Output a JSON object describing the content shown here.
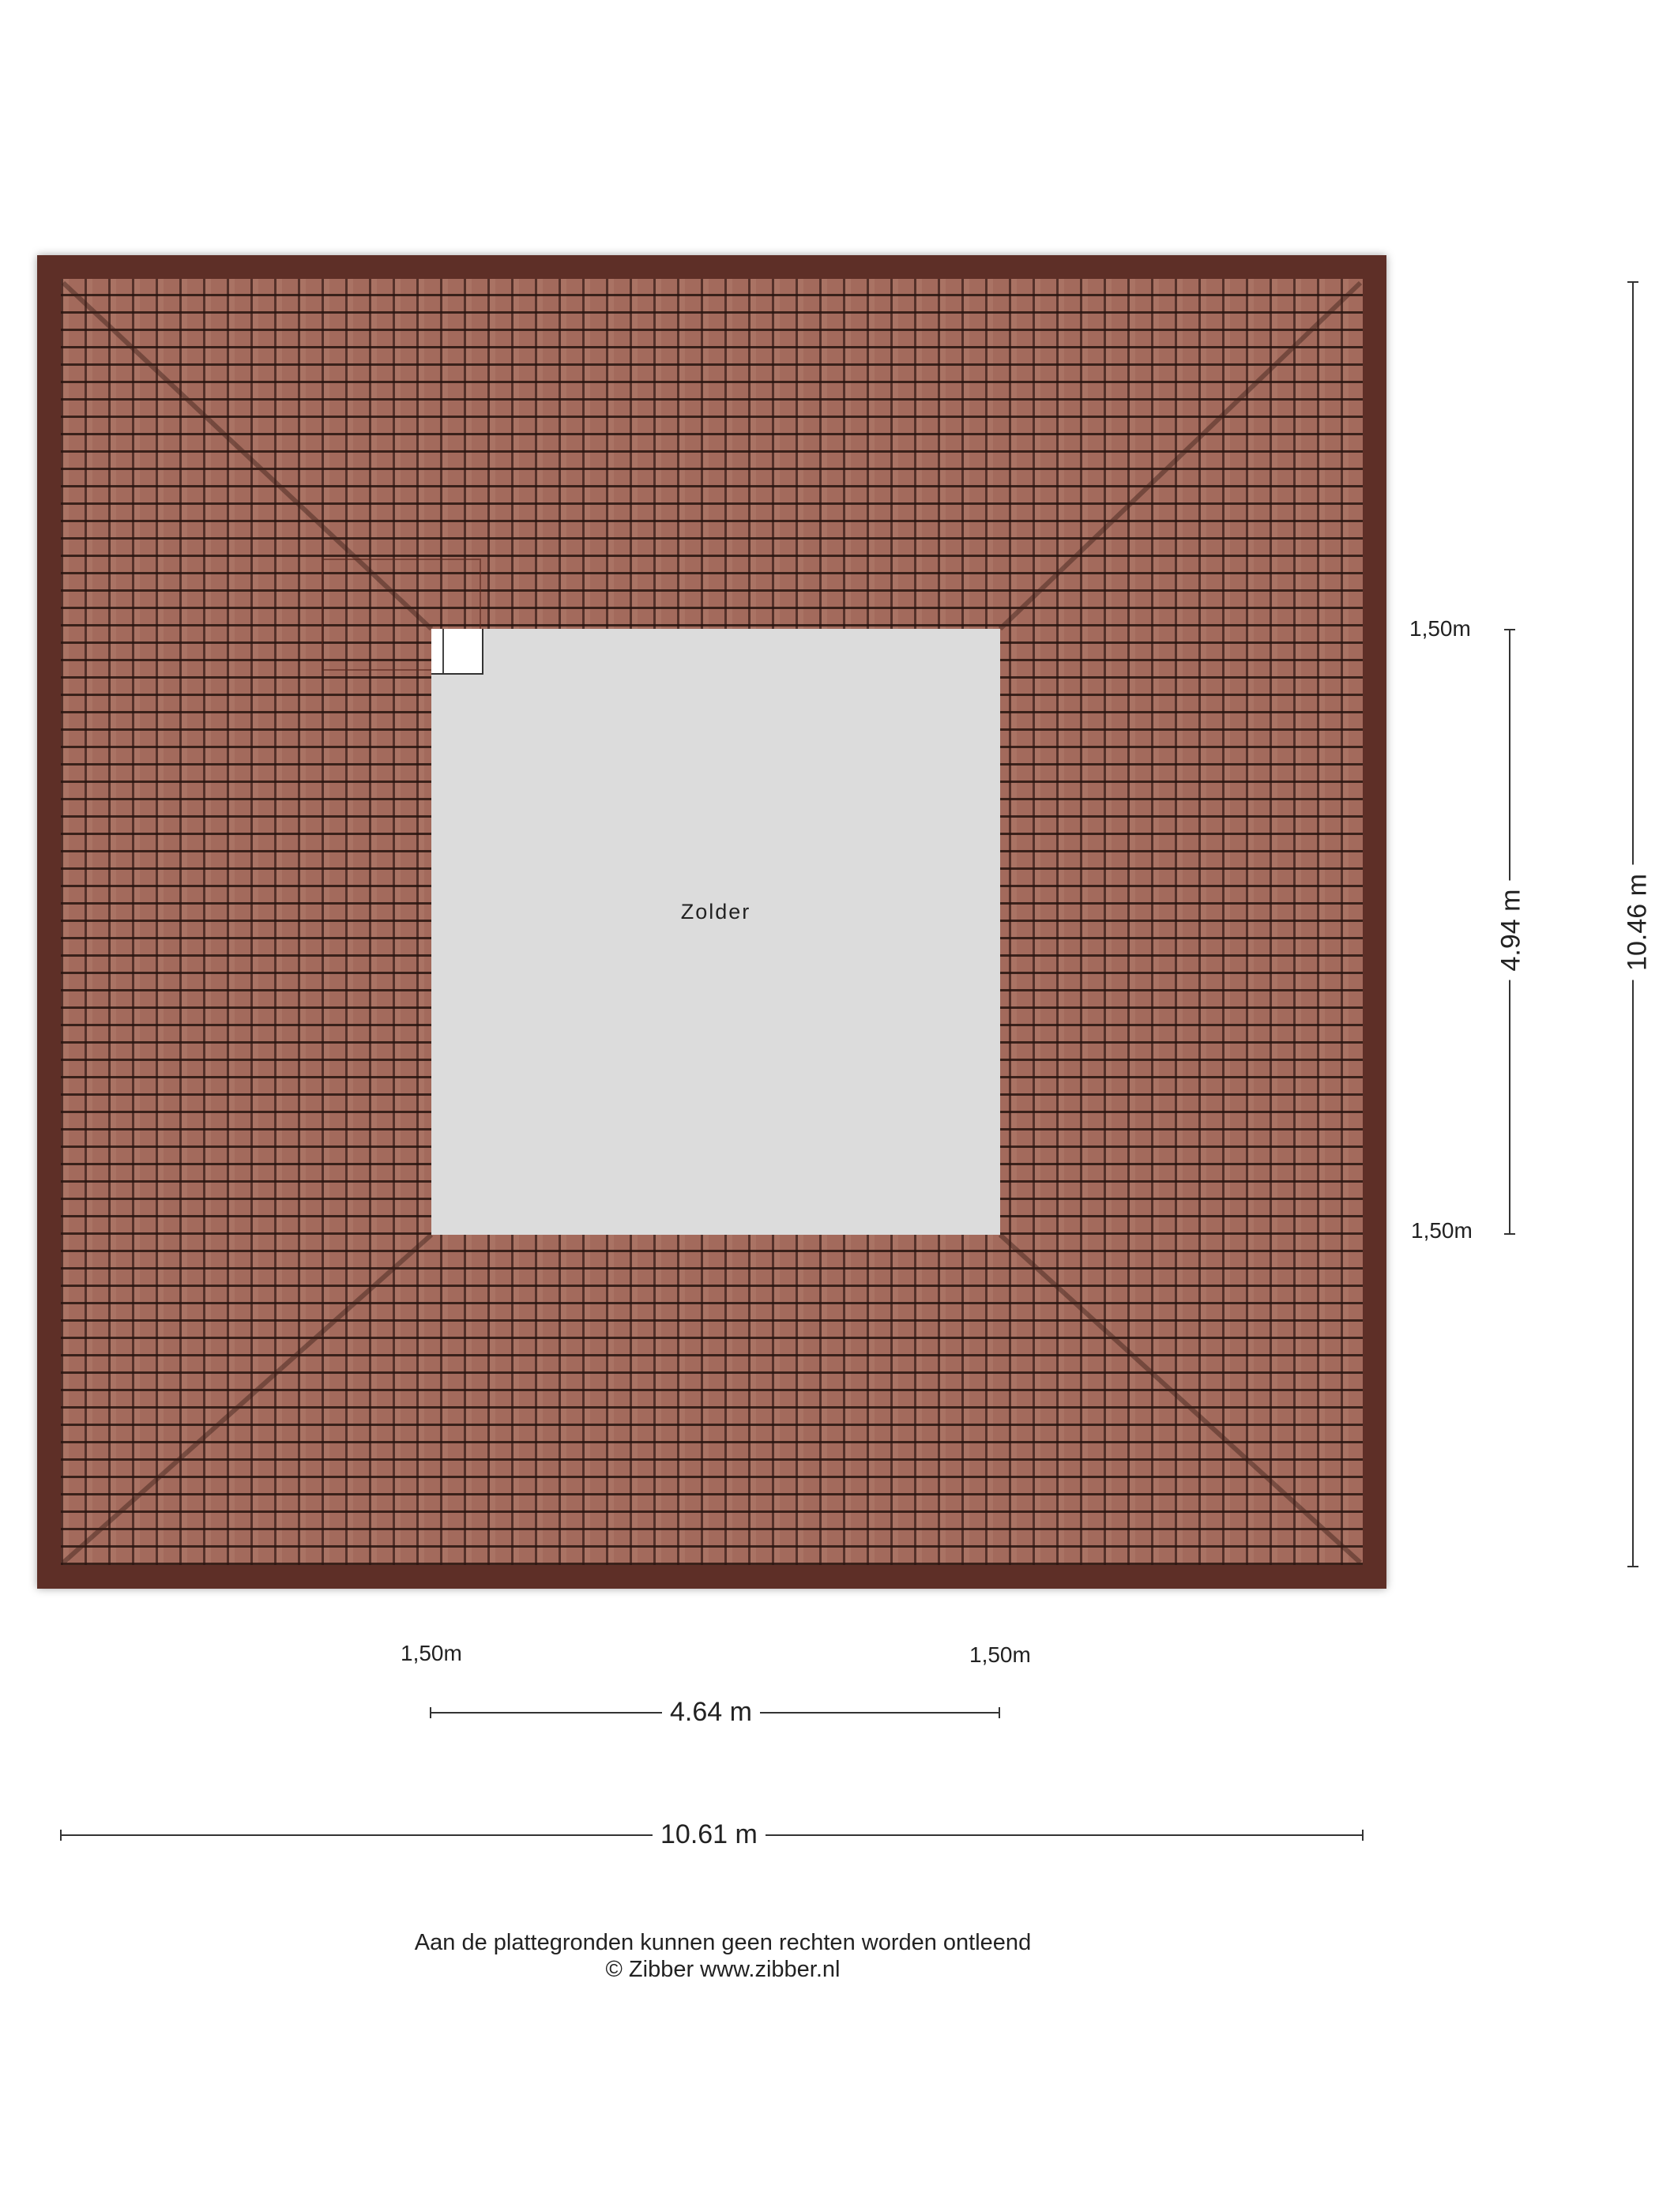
{
  "room": {
    "name": "Zolder"
  },
  "dimensions": {
    "top_offset": "1,50m",
    "bottom_offset_right": "1,50m",
    "inner_height": "4.94 m",
    "total_height": "10.46 m",
    "left_offset_bottom": "1,50m",
    "right_offset_bottom": "1,50m",
    "inner_width": "4.64 m",
    "total_width": "10.61 m"
  },
  "footer": {
    "disclaimer": "Aan de plattegronden kunnen geen rechten worden ontleend",
    "copyright": "© Zibber www.zibber.nl"
  },
  "colors": {
    "roof_tile": "#a36a5c",
    "roof_edge": "#5e2f27",
    "room_fill": "#dcdcdc"
  }
}
